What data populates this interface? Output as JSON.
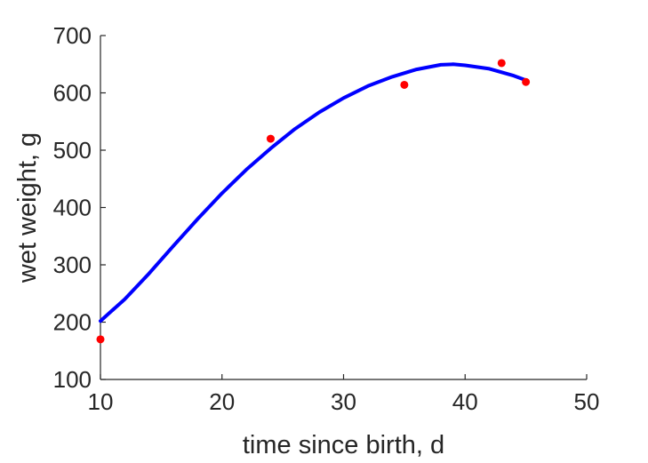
{
  "chart_data": {
    "type": "scatter",
    "xlabel": "time since birth, d",
    "ylabel": "wet weight, g",
    "xlim": [
      10,
      50
    ],
    "ylim": [
      100,
      700
    ],
    "xticks": [
      "10",
      "20",
      "30",
      "40",
      "50"
    ],
    "yticks": [
      "100",
      "200",
      "300",
      "400",
      "500",
      "600",
      "700"
    ],
    "grid": false,
    "series": [
      {
        "type": "scatter",
        "color": "#ff0000",
        "points": [
          {
            "x": 10,
            "y": 170
          },
          {
            "x": 24,
            "y": 520
          },
          {
            "x": 35,
            "y": 614
          },
          {
            "x": 43,
            "y": 652
          },
          {
            "x": 45,
            "y": 619
          }
        ]
      },
      {
        "type": "line",
        "color": "#0000ff",
        "points": [
          {
            "x": 10,
            "y": 202
          },
          {
            "x": 12,
            "y": 240
          },
          {
            "x": 14,
            "y": 285
          },
          {
            "x": 16,
            "y": 333
          },
          {
            "x": 18,
            "y": 380
          },
          {
            "x": 20,
            "y": 425
          },
          {
            "x": 22,
            "y": 466
          },
          {
            "x": 24,
            "y": 503
          },
          {
            "x": 26,
            "y": 537
          },
          {
            "x": 28,
            "y": 566
          },
          {
            "x": 30,
            "y": 591
          },
          {
            "x": 32,
            "y": 612
          },
          {
            "x": 34,
            "y": 628
          },
          {
            "x": 36,
            "y": 641
          },
          {
            "x": 38,
            "y": 649
          },
          {
            "x": 39,
            "y": 650
          },
          {
            "x": 40,
            "y": 648
          },
          {
            "x": 42,
            "y": 642
          },
          {
            "x": 44,
            "y": 630
          },
          {
            "x": 45,
            "y": 622
          }
        ]
      }
    ]
  }
}
